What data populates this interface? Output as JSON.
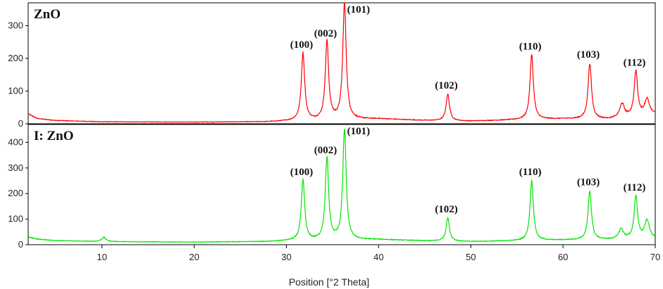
{
  "chart_data": {
    "type": "line",
    "xlabel": "Position [°2 Theta]",
    "xlim": [
      2,
      70
    ],
    "x_ticks": [
      "10",
      "20",
      "30",
      "40",
      "50",
      "60",
      "70"
    ],
    "panels": [
      {
        "title": "ZnO",
        "color": "#ff0000",
        "ylim": [
          0,
          370
        ],
        "y_ticks": [
          "0",
          "100",
          "200",
          "300"
        ],
        "baseline": [
          [
            2,
            30
          ],
          [
            3,
            16
          ],
          [
            5,
            10
          ],
          [
            10,
            6
          ],
          [
            20,
            5
          ],
          [
            28,
            6
          ],
          [
            30,
            8
          ],
          [
            40,
            15
          ],
          [
            45,
            10
          ],
          [
            50,
            8
          ],
          [
            55,
            12
          ],
          [
            60,
            15
          ],
          [
            65,
            14
          ],
          [
            70,
            30
          ]
        ],
        "peaks": [
          {
            "hkl": "(100)",
            "x": 31.8,
            "y": 215
          },
          {
            "hkl": "(002)",
            "x": 34.4,
            "y": 250
          },
          {
            "hkl": "(101)",
            "x": 36.3,
            "y": 370
          },
          {
            "hkl": "(102)",
            "x": 47.5,
            "y": 90
          },
          {
            "hkl": "(110)",
            "x": 56.6,
            "y": 210
          },
          {
            "hkl": "(103)",
            "x": 62.9,
            "y": 185
          },
          {
            "hkl": "(112)",
            "x": 67.9,
            "y": 160
          }
        ],
        "minor_peaks": [
          {
            "x": 66.4,
            "y": 60
          },
          {
            "x": 69.1,
            "y": 75
          }
        ]
      },
      {
        "title": "I: ZnO",
        "color": "#00e600",
        "ylim": [
          0,
          470
        ],
        "y_ticks": [
          "0",
          "100",
          "200",
          "300",
          "400"
        ],
        "baseline": [
          [
            2,
            30
          ],
          [
            3,
            22
          ],
          [
            5,
            16
          ],
          [
            10,
            12
          ],
          [
            20,
            10
          ],
          [
            28,
            12
          ],
          [
            30,
            15
          ],
          [
            40,
            20
          ],
          [
            45,
            15
          ],
          [
            50,
            12
          ],
          [
            55,
            15
          ],
          [
            60,
            18
          ],
          [
            65,
            20
          ],
          [
            70,
            25
          ]
        ],
        "peaks": [
          {
            "hkl": "(100)",
            "x": 31.8,
            "y": 250
          },
          {
            "hkl": "(002)",
            "x": 34.4,
            "y": 335
          },
          {
            "hkl": "(101)",
            "x": 36.3,
            "y": 450
          },
          {
            "hkl": "(102)",
            "x": 47.5,
            "y": 105
          },
          {
            "hkl": "(110)",
            "x": 56.6,
            "y": 250
          },
          {
            "hkl": "(103)",
            "x": 62.9,
            "y": 210
          },
          {
            "hkl": "(112)",
            "x": 67.9,
            "y": 190
          }
        ],
        "minor_peaks": [
          {
            "x": 10.2,
            "y": 28
          },
          {
            "x": 66.3,
            "y": 60
          },
          {
            "x": 69.1,
            "y": 95
          }
        ]
      }
    ]
  }
}
